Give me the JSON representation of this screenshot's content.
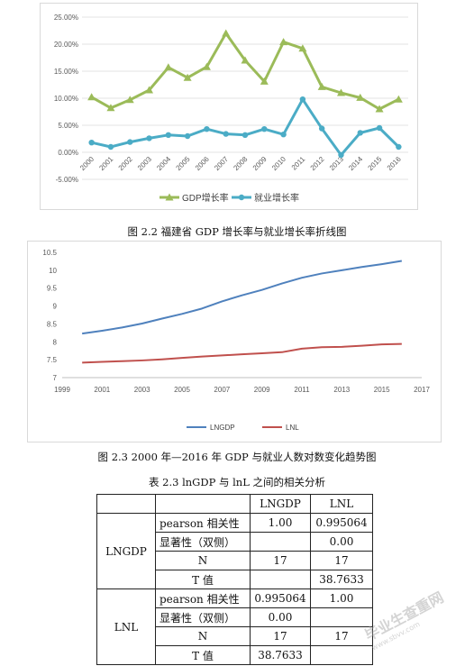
{
  "figure1": {
    "caption": "图 2.2 福建省 GDP 增长率与就业增长率折线图",
    "colors": {
      "gdp": "#9bbb59",
      "emp": "#4bacc6"
    },
    "chart_data": {
      "type": "line",
      "x": [
        "2000",
        "2001",
        "2002",
        "2003",
        "2004",
        "2005",
        "2006",
        "2007",
        "2008",
        "2009",
        "2010",
        "2011",
        "2012",
        "2013",
        "2014",
        "2015",
        "2016"
      ],
      "ylim": [
        -0.05,
        0.25
      ],
      "yticks": [
        "25.00%",
        "20.00%",
        "15.00%",
        "10.00%",
        "5.00%",
        "0.00%",
        "-5.00%"
      ],
      "series": [
        {
          "name": "GDP增长率",
          "values": [
            0.102,
            0.082,
            0.097,
            0.115,
            0.157,
            0.138,
            0.158,
            0.22,
            0.17,
            0.131,
            0.204,
            0.192,
            0.121,
            0.11,
            0.101,
            0.08,
            0.098
          ]
        },
        {
          "name": "就业增长率",
          "values": [
            0.018,
            0.01,
            0.019,
            0.026,
            0.032,
            0.03,
            0.043,
            0.034,
            0.032,
            0.043,
            0.033,
            0.098,
            0.044,
            -0.005,
            0.036,
            0.045,
            0.01
          ]
        }
      ],
      "legend_position": "bottom"
    }
  },
  "figure2": {
    "caption": "图 2.3 2000 年—2016 年 GDP 与就业人数对数变化趋势图",
    "colors": {
      "lngdp": "#4f81bd",
      "lnl": "#c0504d"
    },
    "chart_data": {
      "type": "line",
      "x": [
        2000,
        2001,
        2002,
        2003,
        2004,
        2005,
        2006,
        2007,
        2008,
        2009,
        2010,
        2011,
        2012,
        2013,
        2014,
        2015,
        2016
      ],
      "xlim": [
        1999,
        2017
      ],
      "xticks": [
        "1999",
        "2001",
        "2003",
        "2005",
        "2007",
        "2009",
        "2011",
        "2013",
        "2015",
        "2017"
      ],
      "ylim": [
        7,
        10.5
      ],
      "yticks": [
        "10.5",
        "10",
        "9.5",
        "9",
        "8.5",
        "8",
        "7.5",
        "7"
      ],
      "series": [
        {
          "name": "LNGDP",
          "values": [
            8.23,
            8.31,
            8.4,
            8.51,
            8.65,
            8.78,
            8.93,
            9.13,
            9.3,
            9.45,
            9.63,
            9.79,
            9.91,
            10.0,
            10.09,
            10.17,
            10.26
          ]
        },
        {
          "name": "LNL",
          "values": [
            7.42,
            7.44,
            7.46,
            7.48,
            7.51,
            7.55,
            7.59,
            7.62,
            7.65,
            7.68,
            7.71,
            7.81,
            7.85,
            7.86,
            7.89,
            7.93,
            7.94
          ]
        }
      ],
      "legend_position": "bottom"
    }
  },
  "table": {
    "caption": "表 2.3 lnGDP 与 lnL 之间的相关分析",
    "header": [
      "",
      "",
      "LNGDP",
      "LNL"
    ],
    "groups": [
      {
        "name": "LNGDP",
        "rows": [
          [
            "pearson 相关性",
            "1.00",
            "0.995064"
          ],
          [
            "显著性（双侧）",
            "",
            "0.00"
          ],
          [
            "N",
            "17",
            "17"
          ],
          [
            "T 值",
            "",
            "38.7633"
          ]
        ]
      },
      {
        "name": "LNL",
        "rows": [
          [
            "pearson 相关性",
            "0.995064",
            "1.00"
          ],
          [
            "显著性（双侧）",
            "0.00",
            ""
          ],
          [
            "N",
            "17",
            "17"
          ],
          [
            "T 值",
            "38.7633",
            ""
          ]
        ]
      }
    ]
  },
  "watermark": {
    "text": "毕业生查重网",
    "url": "www.sbvv.com"
  }
}
